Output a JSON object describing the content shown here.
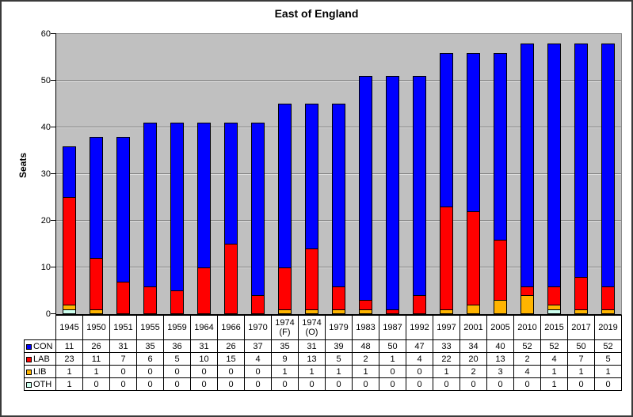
{
  "chart_data": {
    "type": "bar",
    "stacked": true,
    "title": "East of England",
    "ylabel": "Seats",
    "ylim": [
      0,
      60
    ],
    "ytick_step": 10,
    "yticks": [
      0,
      10,
      20,
      30,
      40,
      50,
      60
    ],
    "grid": true,
    "plot_background": "#C0C0C0",
    "gridline_color": "#808080",
    "legend_position": "data-table-left",
    "data_table_shown": true,
    "categories": [
      "1945",
      "1950",
      "1951",
      "1955",
      "1959",
      "1964",
      "1966",
      "1970",
      "1974 (F)",
      "1974 (O)",
      "1979",
      "1983",
      "1987",
      "1992",
      "1997",
      "2001",
      "2005",
      "2010",
      "2015",
      "2017",
      "2019"
    ],
    "series": [
      {
        "name": "CON",
        "color": "#0000FF",
        "values": [
          11,
          26,
          31,
          35,
          36,
          31,
          26,
          37,
          35,
          31,
          39,
          48,
          50,
          47,
          33,
          34,
          40,
          52,
          52,
          50,
          52
        ]
      },
      {
        "name": "LAB",
        "color": "#FF0000",
        "values": [
          23,
          11,
          7,
          6,
          5,
          10,
          15,
          4,
          9,
          13,
          5,
          2,
          1,
          4,
          22,
          20,
          13,
          2,
          4,
          7,
          5
        ]
      },
      {
        "name": "LIB",
        "color": "#FFB400",
        "values": [
          1,
          1,
          0,
          0,
          0,
          0,
          0,
          0,
          1,
          1,
          1,
          1,
          0,
          0,
          1,
          2,
          3,
          4,
          1,
          1,
          1
        ]
      },
      {
        "name": "OTH",
        "color": "#CCFFEE",
        "values": [
          1,
          0,
          0,
          0,
          0,
          0,
          0,
          0,
          0,
          0,
          0,
          0,
          0,
          0,
          0,
          0,
          0,
          0,
          1,
          0,
          0
        ]
      }
    ],
    "stack_order_bottom_to_top": [
      "OTH",
      "LIB",
      "LAB",
      "CON"
    ],
    "bar_totals": [
      36,
      38,
      38,
      41,
      41,
      41,
      41,
      41,
      45,
      45,
      45,
      51,
      51,
      51,
      56,
      56,
      56,
      58,
      58,
      58,
      58
    ]
  }
}
